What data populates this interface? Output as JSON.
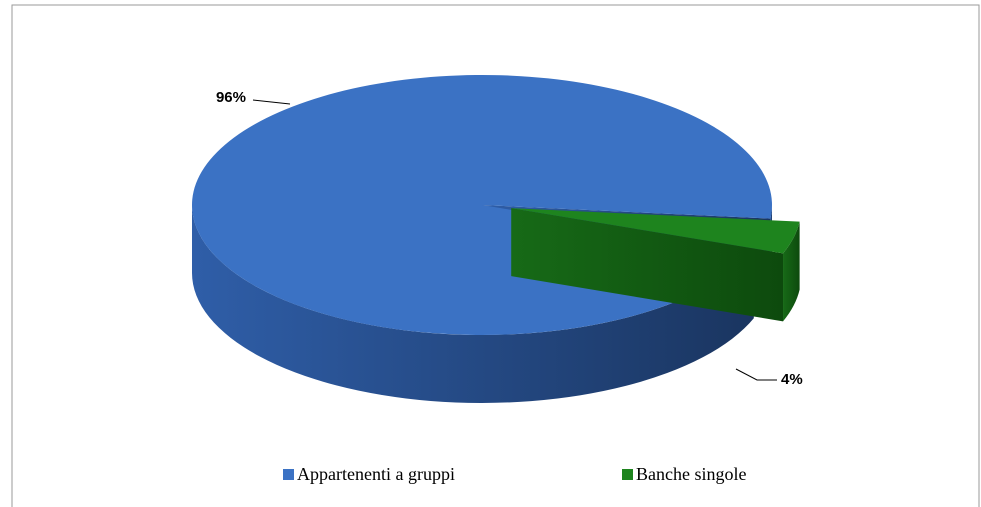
{
  "chart_data": {
    "type": "pie",
    "categories": [
      "Appartenenti a gruppi",
      "Banche singole"
    ],
    "values": [
      96,
      4
    ],
    "value_labels": [
      "96%",
      "4%"
    ],
    "colors": [
      "#3b72c4",
      "#1e841e"
    ],
    "legend": "bottom"
  }
}
